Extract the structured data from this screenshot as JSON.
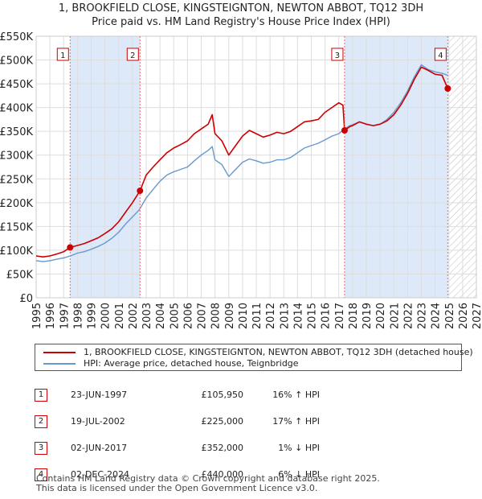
{
  "title": {
    "line1": "1, BROOKFIELD CLOSE, KINGSTEIGNTON, NEWTON ABBOT, TQ12 3DH",
    "line2": "Price paid vs. HM Land Registry's House Price Index (HPI)"
  },
  "colors": {
    "price_line": "#cc0000",
    "hpi_line": "#6699cc",
    "shade": "#dde8f8",
    "grid": "#dddddd",
    "marker_line": "#ff6666"
  },
  "chart_data": {
    "type": "line",
    "title": "Price paid vs. HM Land Registry's House Price Index (HPI)",
    "xlabel": "",
    "ylabel": "",
    "xlim": [
      1995,
      2027
    ],
    "ylim": [
      0,
      550000
    ],
    "y_ticks": [
      0,
      50000,
      100000,
      150000,
      200000,
      250000,
      300000,
      350000,
      400000,
      450000,
      500000,
      550000
    ],
    "y_tick_labels": [
      "£0",
      "£50K",
      "£100K",
      "£150K",
      "£200K",
      "£250K",
      "£300K",
      "£350K",
      "£400K",
      "£450K",
      "£500K",
      "£550K"
    ],
    "x_ticks": [
      "1995",
      "1996",
      "1997",
      "1998",
      "1999",
      "2000",
      "2001",
      "2002",
      "2003",
      "2004",
      "2005",
      "2006",
      "2007",
      "2008",
      "2009",
      "2010",
      "2011",
      "2012",
      "2013",
      "2014",
      "2015",
      "2016",
      "2017",
      "2018",
      "2019",
      "2020",
      "2021",
      "2022",
      "2023",
      "2024",
      "2025",
      "2026",
      "2027"
    ],
    "shaded_ranges": [
      [
        1997.47,
        2002.55
      ],
      [
        2017.42,
        2024.92
      ]
    ],
    "future_hatch_start": 2025.0,
    "sale_markers": [
      {
        "label": "1",
        "x": 1997.47,
        "y": 105950
      },
      {
        "label": "2",
        "x": 2002.55,
        "y": 225000
      },
      {
        "label": "3",
        "x": 2017.42,
        "y": 352000
      },
      {
        "label": "4",
        "x": 2024.92,
        "y": 440000
      }
    ],
    "series": [
      {
        "name": "1, BROOKFIELD CLOSE, KINGSTEIGNTON, NEWTON ABBOT, TQ12 3DH (detached house)",
        "color": "#cc0000",
        "points": [
          [
            1995.0,
            88000
          ],
          [
            1995.5,
            86000
          ],
          [
            1996.0,
            88000
          ],
          [
            1996.5,
            92000
          ],
          [
            1997.0,
            97000
          ],
          [
            1997.47,
            105950
          ],
          [
            1998.0,
            110000
          ],
          [
            1998.5,
            114000
          ],
          [
            1999.0,
            120000
          ],
          [
            1999.5,
            126000
          ],
          [
            2000.0,
            135000
          ],
          [
            2000.5,
            145000
          ],
          [
            2001.0,
            160000
          ],
          [
            2001.5,
            180000
          ],
          [
            2002.0,
            200000
          ],
          [
            2002.55,
            225000
          ],
          [
            2003.0,
            258000
          ],
          [
            2003.5,
            275000
          ],
          [
            2004.0,
            290000
          ],
          [
            2004.5,
            305000
          ],
          [
            2005.0,
            315000
          ],
          [
            2005.5,
            322000
          ],
          [
            2006.0,
            330000
          ],
          [
            2006.5,
            345000
          ],
          [
            2007.0,
            355000
          ],
          [
            2007.5,
            365000
          ],
          [
            2007.8,
            385000
          ],
          [
            2008.0,
            345000
          ],
          [
            2008.5,
            330000
          ],
          [
            2009.0,
            300000
          ],
          [
            2009.5,
            320000
          ],
          [
            2010.0,
            340000
          ],
          [
            2010.5,
            352000
          ],
          [
            2011.0,
            345000
          ],
          [
            2011.5,
            338000
          ],
          [
            2012.0,
            342000
          ],
          [
            2012.5,
            348000
          ],
          [
            2013.0,
            345000
          ],
          [
            2013.5,
            350000
          ],
          [
            2014.0,
            360000
          ],
          [
            2014.5,
            370000
          ],
          [
            2015.0,
            372000
          ],
          [
            2015.5,
            375000
          ],
          [
            2016.0,
            390000
          ],
          [
            2016.5,
            400000
          ],
          [
            2017.0,
            410000
          ],
          [
            2017.3,
            405000
          ],
          [
            2017.42,
            352000
          ],
          [
            2017.8,
            360000
          ],
          [
            2018.0,
            362000
          ],
          [
            2018.5,
            370000
          ],
          [
            2019.0,
            365000
          ],
          [
            2019.5,
            362000
          ],
          [
            2020.0,
            365000
          ],
          [
            2020.5,
            372000
          ],
          [
            2021.0,
            385000
          ],
          [
            2021.5,
            405000
          ],
          [
            2022.0,
            430000
          ],
          [
            2022.5,
            460000
          ],
          [
            2023.0,
            485000
          ],
          [
            2023.5,
            478000
          ],
          [
            2024.0,
            470000
          ],
          [
            2024.5,
            468000
          ],
          [
            2024.92,
            440000
          ]
        ]
      },
      {
        "name": "HPI: Average price, detached house, Teignbridge",
        "color": "#6699cc",
        "points": [
          [
            1995.0,
            78000
          ],
          [
            1995.5,
            76000
          ],
          [
            1996.0,
            78000
          ],
          [
            1996.5,
            81000
          ],
          [
            1997.0,
            84000
          ],
          [
            1997.5,
            88000
          ],
          [
            1998.0,
            94000
          ],
          [
            1998.5,
            97000
          ],
          [
            1999.0,
            102000
          ],
          [
            1999.5,
            108000
          ],
          [
            2000.0,
            115000
          ],
          [
            2000.5,
            125000
          ],
          [
            2001.0,
            138000
          ],
          [
            2001.5,
            155000
          ],
          [
            2002.0,
            170000
          ],
          [
            2002.5,
            185000
          ],
          [
            2003.0,
            210000
          ],
          [
            2003.5,
            228000
          ],
          [
            2004.0,
            245000
          ],
          [
            2004.5,
            258000
          ],
          [
            2005.0,
            265000
          ],
          [
            2005.5,
            270000
          ],
          [
            2006.0,
            275000
          ],
          [
            2006.5,
            288000
          ],
          [
            2007.0,
            300000
          ],
          [
            2007.5,
            310000
          ],
          [
            2007.8,
            318000
          ],
          [
            2008.0,
            290000
          ],
          [
            2008.5,
            280000
          ],
          [
            2009.0,
            255000
          ],
          [
            2009.5,
            270000
          ],
          [
            2010.0,
            285000
          ],
          [
            2010.5,
            292000
          ],
          [
            2011.0,
            288000
          ],
          [
            2011.5,
            283000
          ],
          [
            2012.0,
            285000
          ],
          [
            2012.5,
            290000
          ],
          [
            2013.0,
            290000
          ],
          [
            2013.5,
            295000
          ],
          [
            2014.0,
            305000
          ],
          [
            2014.5,
            315000
          ],
          [
            2015.0,
            320000
          ],
          [
            2015.5,
            325000
          ],
          [
            2016.0,
            332000
          ],
          [
            2016.5,
            340000
          ],
          [
            2017.0,
            345000
          ],
          [
            2017.42,
            355000
          ],
          [
            2017.8,
            362000
          ],
          [
            2018.0,
            364000
          ],
          [
            2018.5,
            370000
          ],
          [
            2019.0,
            365000
          ],
          [
            2019.5,
            362000
          ],
          [
            2020.0,
            365000
          ],
          [
            2020.5,
            375000
          ],
          [
            2021.0,
            390000
          ],
          [
            2021.5,
            410000
          ],
          [
            2022.0,
            435000
          ],
          [
            2022.5,
            465000
          ],
          [
            2023.0,
            490000
          ],
          [
            2023.5,
            480000
          ],
          [
            2024.0,
            475000
          ],
          [
            2024.5,
            472000
          ],
          [
            2024.92,
            468000
          ]
        ]
      }
    ]
  },
  "legend": {
    "price_label": "1, BROOKFIELD CLOSE, KINGSTEIGNTON, NEWTON ABBOT, TQ12 3DH (detached house)",
    "hpi_label": "HPI: Average price, detached house, Teignbridge"
  },
  "sales": [
    {
      "num": "1",
      "date": "23-JUN-1997",
      "price": "£105,950",
      "hpi": "16% ↑ HPI"
    },
    {
      "num": "2",
      "date": "19-JUL-2002",
      "price": "£225,000",
      "hpi": "17% ↑ HPI"
    },
    {
      "num": "3",
      "date": "02-JUN-2017",
      "price": "£352,000",
      "hpi": "1% ↓ HPI"
    },
    {
      "num": "4",
      "date": "02-DEC-2024",
      "price": "£440,000",
      "hpi": "6% ↓ HPI"
    }
  ],
  "footer": {
    "line1": "Contains HM Land Registry data © Crown copyright and database right 2025.",
    "line2": "This data is licensed under the Open Government Licence v3.0."
  }
}
